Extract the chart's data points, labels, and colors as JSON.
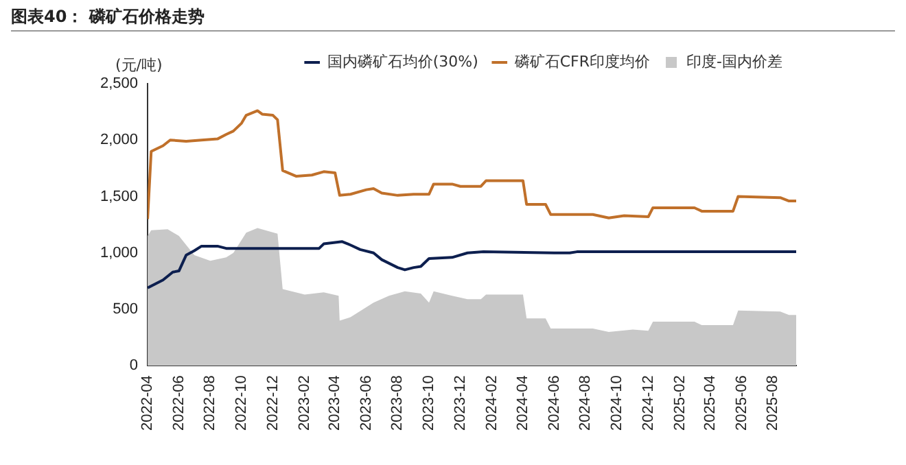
{
  "chart_data": {
    "type": "line",
    "title": "图表40： 磷矿石价格走势",
    "ylabel": "(元/吨)",
    "legend": "top",
    "grid": false,
    "marker": "none",
    "line_style": "solid",
    "xlim": [
      "2022-04-01",
      "2025-09-15"
    ],
    "xticks": [
      "2022-04",
      "2022-06",
      "2022-08",
      "2022-10",
      "2022-12",
      "2023-02",
      "2023-04",
      "2023-06",
      "2023-08",
      "2023-10",
      "2023-12",
      "2024-02",
      "2024-04",
      "2024-06",
      "2024-08",
      "2024-10",
      "2024-12",
      "2025-02",
      "2025-04",
      "2025-06",
      "2025-08"
    ],
    "ylim": [
      0,
      2500
    ],
    "yticks": [
      0,
      500,
      {
        "value": 1000,
        "label": "1,000"
      },
      {
        "value": 1500,
        "label": "1,500"
      },
      {
        "value": 2000,
        "label": "2,000"
      },
      {
        "value": 2500,
        "label": "2,500"
      }
    ],
    "series": [
      {
        "name": "印度-国内价差",
        "type": "area",
        "color": "#c8c8c8",
        "x": [
          "2022-04-01",
          "2022-04-08",
          "2022-05-10",
          "2022-06-01",
          "2022-07-01",
          "2022-08-01",
          "2022-09-01",
          "2022-09-15",
          "2022-10-10",
          "2022-11-01",
          "2022-12-10",
          "2022-12-20",
          "2023-02-01",
          "2023-03-10",
          "2023-04-08",
          "2023-04-10",
          "2023-05-01",
          "2023-06-15",
          "2023-07-15",
          "2023-08-15",
          "2023-09-15",
          "2023-10-01",
          "2023-10-10",
          "2023-11-15",
          "2023-12-15",
          "2024-01-10",
          "2024-01-20",
          "2024-04-01",
          "2024-04-08",
          "2024-05-15",
          "2024-05-25",
          "2024-08-15",
          "2024-09-15",
          "2024-11-01",
          "2024-12-01",
          "2024-12-10",
          "2025-03-01",
          "2025-03-15",
          "2025-05-15",
          "2025-05-25",
          "2025-08-15",
          "2025-09-01",
          "2025-09-15"
        ],
        "values": [
          1150,
          1200,
          1210,
          1150,
          980,
          930,
          960,
          1000,
          1180,
          1220,
          1170,
          680,
          630,
          650,
          620,
          400,
          430,
          560,
          620,
          660,
          640,
          560,
          660,
          620,
          590,
          590,
          630,
          630,
          420,
          420,
          330,
          330,
          300,
          320,
          310,
          390,
          390,
          360,
          360,
          490,
          480,
          450,
          450
        ]
      },
      {
        "name": "国内磷矿石均价(30%)",
        "color": "#0d1f4f",
        "x": [
          "2022-04-01",
          "2022-05-01",
          "2022-05-20",
          "2022-06-01",
          "2022-06-15",
          "2022-07-01",
          "2022-07-15",
          "2022-08-15",
          "2022-09-01",
          "2023-03-01",
          "2023-03-10",
          "2023-04-15",
          "2023-05-01",
          "2023-05-20",
          "2023-06-15",
          "2023-07-01",
          "2023-08-01",
          "2023-08-15",
          "2023-09-01",
          "2023-09-15",
          "2023-10-01",
          "2023-11-15",
          "2023-12-15",
          "2024-01-15",
          "2024-06-01",
          "2024-07-01",
          "2024-07-15",
          "2025-09-15"
        ],
        "values": [
          690,
          760,
          830,
          840,
          980,
          1020,
          1060,
          1060,
          1040,
          1040,
          1080,
          1100,
          1070,
          1030,
          1000,
          940,
          870,
          850,
          870,
          880,
          950,
          960,
          1000,
          1010,
          1000,
          1000,
          1010,
          1010
        ]
      },
      {
        "name": "磷矿石CFR印度均价",
        "color": "#c0702a",
        "x": [
          "2022-04-01",
          "2022-04-08",
          "2022-05-01",
          "2022-05-15",
          "2022-06-15",
          "2022-07-15",
          "2022-08-15",
          "2022-09-01",
          "2022-09-15",
          "2022-10-01",
          "2022-10-10",
          "2022-11-01",
          "2022-11-10",
          "2022-12-01",
          "2022-12-10",
          "2022-12-20",
          "2023-01-15",
          "2023-02-15",
          "2023-03-10",
          "2023-04-01",
          "2023-04-10",
          "2023-05-01",
          "2023-06-01",
          "2023-06-15",
          "2023-07-01",
          "2023-08-01",
          "2023-09-01",
          "2023-10-01",
          "2023-10-10",
          "2023-11-15",
          "2023-12-01",
          "2024-01-10",
          "2024-01-20",
          "2024-04-01",
          "2024-04-08",
          "2024-05-15",
          "2024-05-25",
          "2024-08-15",
          "2024-09-15",
          "2024-10-15",
          "2024-12-01",
          "2024-12-10",
          "2025-03-01",
          "2025-03-15",
          "2025-05-15",
          "2025-05-25",
          "2025-08-15",
          "2025-09-01",
          "2025-09-15"
        ],
        "values": [
          1300,
          1900,
          1950,
          2000,
          1990,
          2000,
          2010,
          2050,
          2080,
          2150,
          2220,
          2260,
          2230,
          2220,
          2180,
          1730,
          1680,
          1690,
          1720,
          1710,
          1510,
          1520,
          1560,
          1570,
          1530,
          1510,
          1520,
          1520,
          1610,
          1610,
          1590,
          1590,
          1640,
          1640,
          1430,
          1430,
          1340,
          1340,
          1310,
          1330,
          1320,
          1400,
          1400,
          1370,
          1370,
          1500,
          1490,
          1460,
          1460
        ]
      }
    ]
  }
}
